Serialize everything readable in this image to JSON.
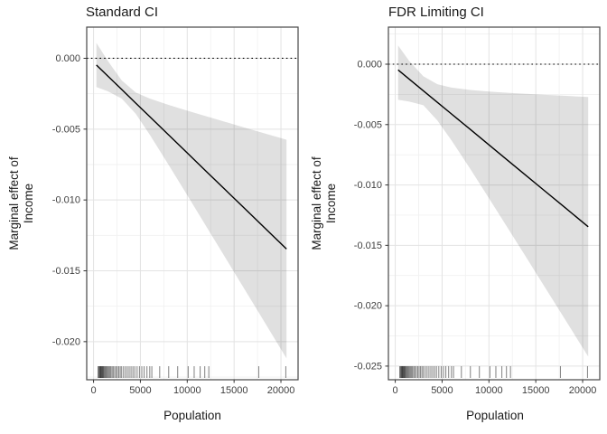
{
  "figure": {
    "background": "#ffffff"
  },
  "chart_data": {
    "type": "line",
    "description": "Two-panel marginal effects plot: fitted line with confidence ribbon, dotted zero reference line, and data rug along x-axis",
    "shared": {
      "xlabel": "Population",
      "ylabel_lines": [
        "Marginal effect of",
        "Income"
      ],
      "xticks": {
        "values": [
          0,
          5000,
          10000,
          15000,
          20000
        ],
        "labels": [
          "0",
          "5000",
          "10000",
          "15000",
          "20000"
        ]
      },
      "x_minor": [
        2500,
        7500,
        12500,
        17500
      ],
      "x": [
        300,
        1500,
        3000,
        4500,
        6000,
        8000,
        10000,
        12000,
        14000,
        16000,
        18000,
        20600
      ],
      "rug_x": [
        480,
        560,
        620,
        680,
        720,
        760,
        800,
        850,
        900,
        950,
        1000,
        1060,
        1120,
        1200,
        1280,
        1360,
        1450,
        1550,
        1650,
        1750,
        1850,
        1980,
        2100,
        2250,
        2400,
        2550,
        2700,
        2850,
        3000,
        3200,
        3400,
        3600,
        3800,
        4000,
        4200,
        4400,
        4650,
        4900,
        5150,
        5400,
        5700,
        6000,
        6220,
        7060,
        8020,
        8980,
        10100,
        10740,
        11380,
        11870,
        12300,
        17630,
        20520
      ]
    },
    "panels": [
      {
        "title": "Standard CI",
        "xlim": [
          -730,
          21830
        ],
        "ylim": [
          0.0022,
          -0.02269
        ],
        "yticks": {
          "values": [
            0,
            -0.005,
            -0.01,
            -0.015,
            -0.02
          ],
          "labels": [
            "0.000",
            "-0.005",
            "-0.010",
            "-0.015",
            "-0.020"
          ]
        },
        "y_minor": [
          -0.0025,
          -0.0075,
          -0.0125,
          -0.0175,
          -0.0225
        ],
        "zero_line": 0,
        "fit": [
          -0.000472,
          -0.00124,
          -0.0022,
          -0.00316,
          -0.00412,
          -0.0054,
          -0.00668,
          -0.00796,
          -0.00924,
          -0.01052,
          -0.0118,
          -0.013464
        ],
        "upper": [
          0.001088,
          -0.000158,
          -0.001559,
          -0.00241,
          -0.002845,
          -0.003288,
          -0.003694,
          -0.004088,
          -0.004477,
          -0.004863,
          -0.005247,
          -0.005746
        ],
        "lower": [
          -0.002032,
          -0.002322,
          -0.002841,
          -0.00391,
          -0.005395,
          -0.007512,
          -0.009666,
          -0.011832,
          -0.014003,
          -0.016177,
          -0.018353,
          -0.021182
        ]
      },
      {
        "title": "FDR Limiting CI",
        "xlim": [
          -730,
          21830
        ],
        "ylim": [
          0.00307,
          -0.02613
        ],
        "yticks": {
          "values": [
            0,
            -0.005,
            -0.01,
            -0.015,
            -0.02,
            -0.025
          ],
          "labels": [
            "0.000",
            "-0.005",
            "-0.010",
            "-0.015",
            "-0.020",
            "-0.025"
          ]
        },
        "y_minor": [
          0.0025,
          -0.0025,
          -0.0075,
          -0.0125,
          -0.0175,
          -0.0225
        ],
        "zero_line": 0,
        "fit": [
          -0.000472,
          -0.00124,
          -0.0022,
          -0.00316,
          -0.00412,
          -0.0054,
          -0.00668,
          -0.00796,
          -0.00924,
          -0.01052,
          -0.0118,
          -0.013464
        ],
        "upper": [
          0.00156,
          0.000266,
          -0.001,
          -0.001654,
          -0.001939,
          -0.002136,
          -0.002265,
          -0.002367,
          -0.002456,
          -0.002538,
          -0.002616,
          -0.002714
        ],
        "lower": [
          -0.00295,
          -0.0031,
          -0.0034,
          -0.004666,
          -0.006301,
          -0.008664,
          -0.011095,
          -0.013553,
          -0.016024,
          -0.018502,
          -0.020984,
          -0.024214
        ]
      }
    ],
    "colors": {
      "panel_bg": "#ffffff",
      "grid_major": "#e3e3e3",
      "grid_minor": "#f1f1f1",
      "border": "#474747",
      "line": "#000000",
      "ribbon_fill": "#000000",
      "ribbon_opacity": 0.12,
      "tick": "#333333",
      "tick_label": "#404040",
      "rug": "#1a1a1a"
    }
  }
}
